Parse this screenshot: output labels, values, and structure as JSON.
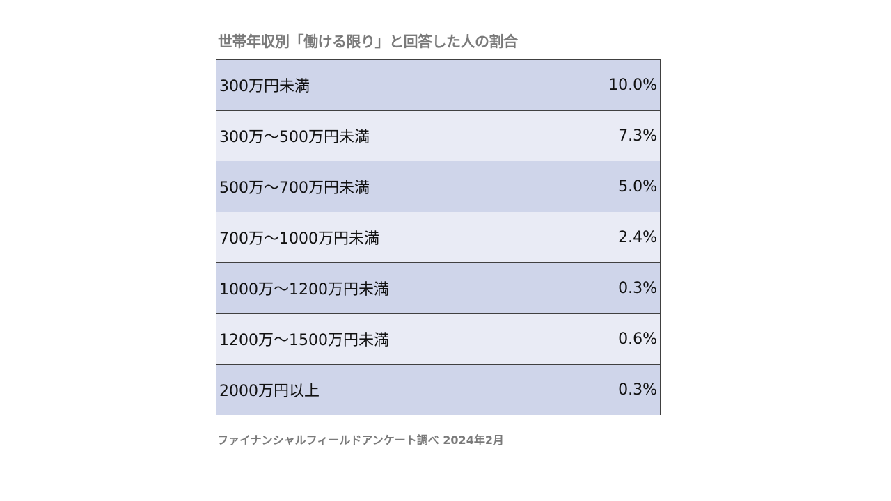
{
  "chart_data": {
    "type": "table",
    "title": "世帯年収別「働ける限り」と回答した人の割合",
    "rows": [
      {
        "label": "300万円未満",
        "value": "10.0%"
      },
      {
        "label": "300万～500万円未満",
        "value": "7.3%"
      },
      {
        "label": "500万～700万円未満",
        "value": "5.0%"
      },
      {
        "label": "700万～1000万円未満",
        "value": "2.4%"
      },
      {
        "label": "1000万～1200万円未満",
        "value": "0.3%"
      },
      {
        "label": "1200万～1500万円未満",
        "value": "0.6%"
      },
      {
        "label": "2000万円以上",
        "value": "0.3%"
      }
    ],
    "source": "ファイナンシャルフィールドアンケート調べ  2024年2月",
    "colors": {
      "row_dark": "#cfd5ea",
      "row_light": "#e9ebf5",
      "border": "#404040",
      "title": "#7a7a7a"
    }
  }
}
